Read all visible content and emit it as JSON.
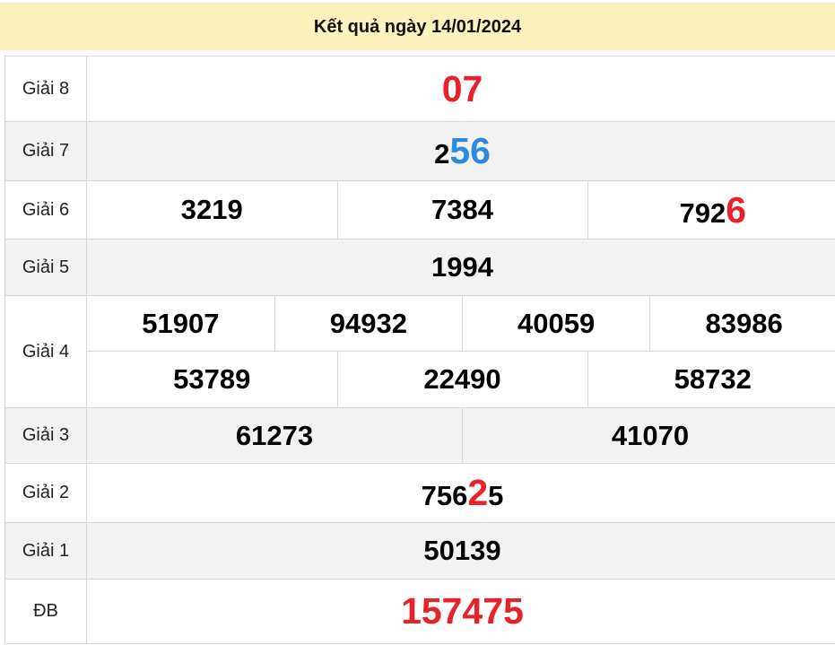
{
  "title": "Kết quả ngày 14/01/2024",
  "colors": {
    "red": "#e8222a",
    "blue": "#2d8ae0",
    "header_bg": "#fdf1bd"
  },
  "prizes": [
    {
      "label": "Giải 8",
      "numbers": [
        {
          "pre": "",
          "hl": "07",
          "post": "",
          "color": "red"
        }
      ]
    },
    {
      "label": "Giải 7",
      "numbers": [
        {
          "pre": "2",
          "hl": "56",
          "post": "",
          "color": "blue"
        }
      ]
    },
    {
      "label": "Giải 6",
      "numbers": [
        {
          "pre": "3219"
        },
        {
          "pre": "7384"
        },
        {
          "pre": "792",
          "hl": "6",
          "post": "",
          "color": "red"
        }
      ]
    },
    {
      "label": "Giải 5",
      "numbers": [
        {
          "pre": "1994"
        }
      ]
    },
    {
      "label": "Giải 4",
      "row1": [
        {
          "pre": "51907"
        },
        {
          "pre": "94932"
        },
        {
          "pre": "40059"
        },
        {
          "pre": "83986"
        }
      ],
      "row2": [
        {
          "pre": "53789"
        },
        {
          "pre": "22490"
        },
        {
          "pre": "58732"
        }
      ]
    },
    {
      "label": "Giải 3",
      "numbers": [
        {
          "pre": "61273"
        },
        {
          "pre": "41070"
        }
      ]
    },
    {
      "label": "Giải 2",
      "numbers": [
        {
          "pre": "756",
          "hl": "2",
          "post": "5",
          "color": "red"
        }
      ]
    },
    {
      "label": "Giải 1",
      "numbers": [
        {
          "pre": "50139"
        }
      ]
    },
    {
      "label": "ĐB",
      "numbers": [
        {
          "pre": "",
          "hl": "157475",
          "post": "",
          "color": "red"
        }
      ]
    }
  ]
}
